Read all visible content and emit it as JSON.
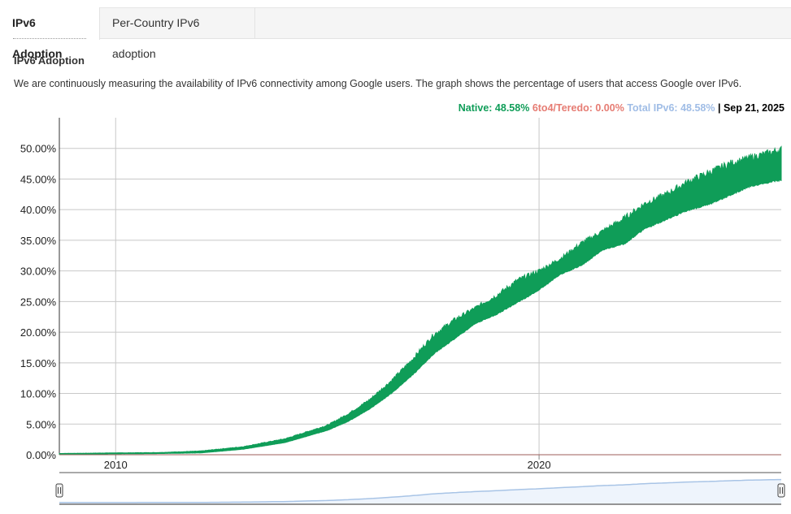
{
  "tabs": [
    {
      "label": "IPv6 Adoption",
      "active": true
    },
    {
      "label": "Per-Country IPv6 adoption",
      "active": false
    }
  ],
  "section_title": "IPv6 Adoption",
  "description": "We are continuously measuring the availability of IPv6 connectivity among Google users. The graph shows the percentage of users that access Google over IPv6.",
  "legend": {
    "native": "Native: 48.58%",
    "teredo": "6to4/Teredo: 0.00%",
    "total": "Total IPv6: 48.58%",
    "separator": "|",
    "date": "Sep 21, 2025"
  },
  "colors": {
    "native": "#0f9d58",
    "teredo": "#e67c73",
    "total": "#a0bde6",
    "grid": "#c8c8c8",
    "navigator_line": "#a8c4e6"
  },
  "chart_data": {
    "type": "area",
    "x_start": "2008-09-01",
    "x_end": "2025-09-21",
    "xlim": [
      2008.67,
      2025.72
    ],
    "ylim": [
      0,
      55
    ],
    "y_ticks": [
      "0.00%",
      "5.00%",
      "10.00%",
      "15.00%",
      "20.00%",
      "25.00%",
      "30.00%",
      "35.00%",
      "40.00%",
      "45.00%",
      "50.00%"
    ],
    "y_tick_values": [
      0,
      5,
      10,
      15,
      20,
      25,
      30,
      35,
      40,
      45,
      50
    ],
    "x_ticks": [
      "2010",
      "2020"
    ],
    "x_tick_values": [
      2010,
      2020
    ],
    "grid": true,
    "series": [
      {
        "name": "Native",
        "x": [
          2008.67,
          2010,
          2011,
          2012,
          2013,
          2014,
          2015,
          2015.5,
          2016,
          2016.5,
          2017,
          2017.5,
          2018,
          2018.5,
          2019,
          2019.5,
          2020,
          2020.5,
          2021,
          2021.5,
          2022,
          2022.5,
          2023,
          2023.5,
          2024,
          2024.5,
          2025,
          2025.72
        ],
        "low": [
          0.1,
          0.15,
          0.2,
          0.3,
          0.9,
          2.0,
          4.0,
          5.5,
          7.5,
          10.0,
          13.0,
          16.5,
          19.0,
          21.5,
          23.0,
          25.0,
          27.0,
          29.5,
          31.0,
          33.5,
          34.5,
          37.0,
          38.5,
          40.0,
          41.0,
          42.5,
          44.0,
          45.0
        ],
        "high": [
          0.2,
          0.3,
          0.35,
          0.6,
          1.3,
          2.6,
          4.8,
          6.7,
          9.0,
          12.0,
          15.5,
          19.5,
          22.0,
          24.0,
          26.0,
          28.5,
          30.0,
          32.0,
          34.5,
          36.5,
          38.5,
          41.0,
          42.5,
          44.5,
          46.0,
          47.5,
          48.5,
          49.8
        ]
      },
      {
        "name": "6to4/Teredo",
        "x": [
          2008.67,
          2025.72
        ],
        "values": [
          0.0,
          0.0
        ]
      }
    ]
  }
}
